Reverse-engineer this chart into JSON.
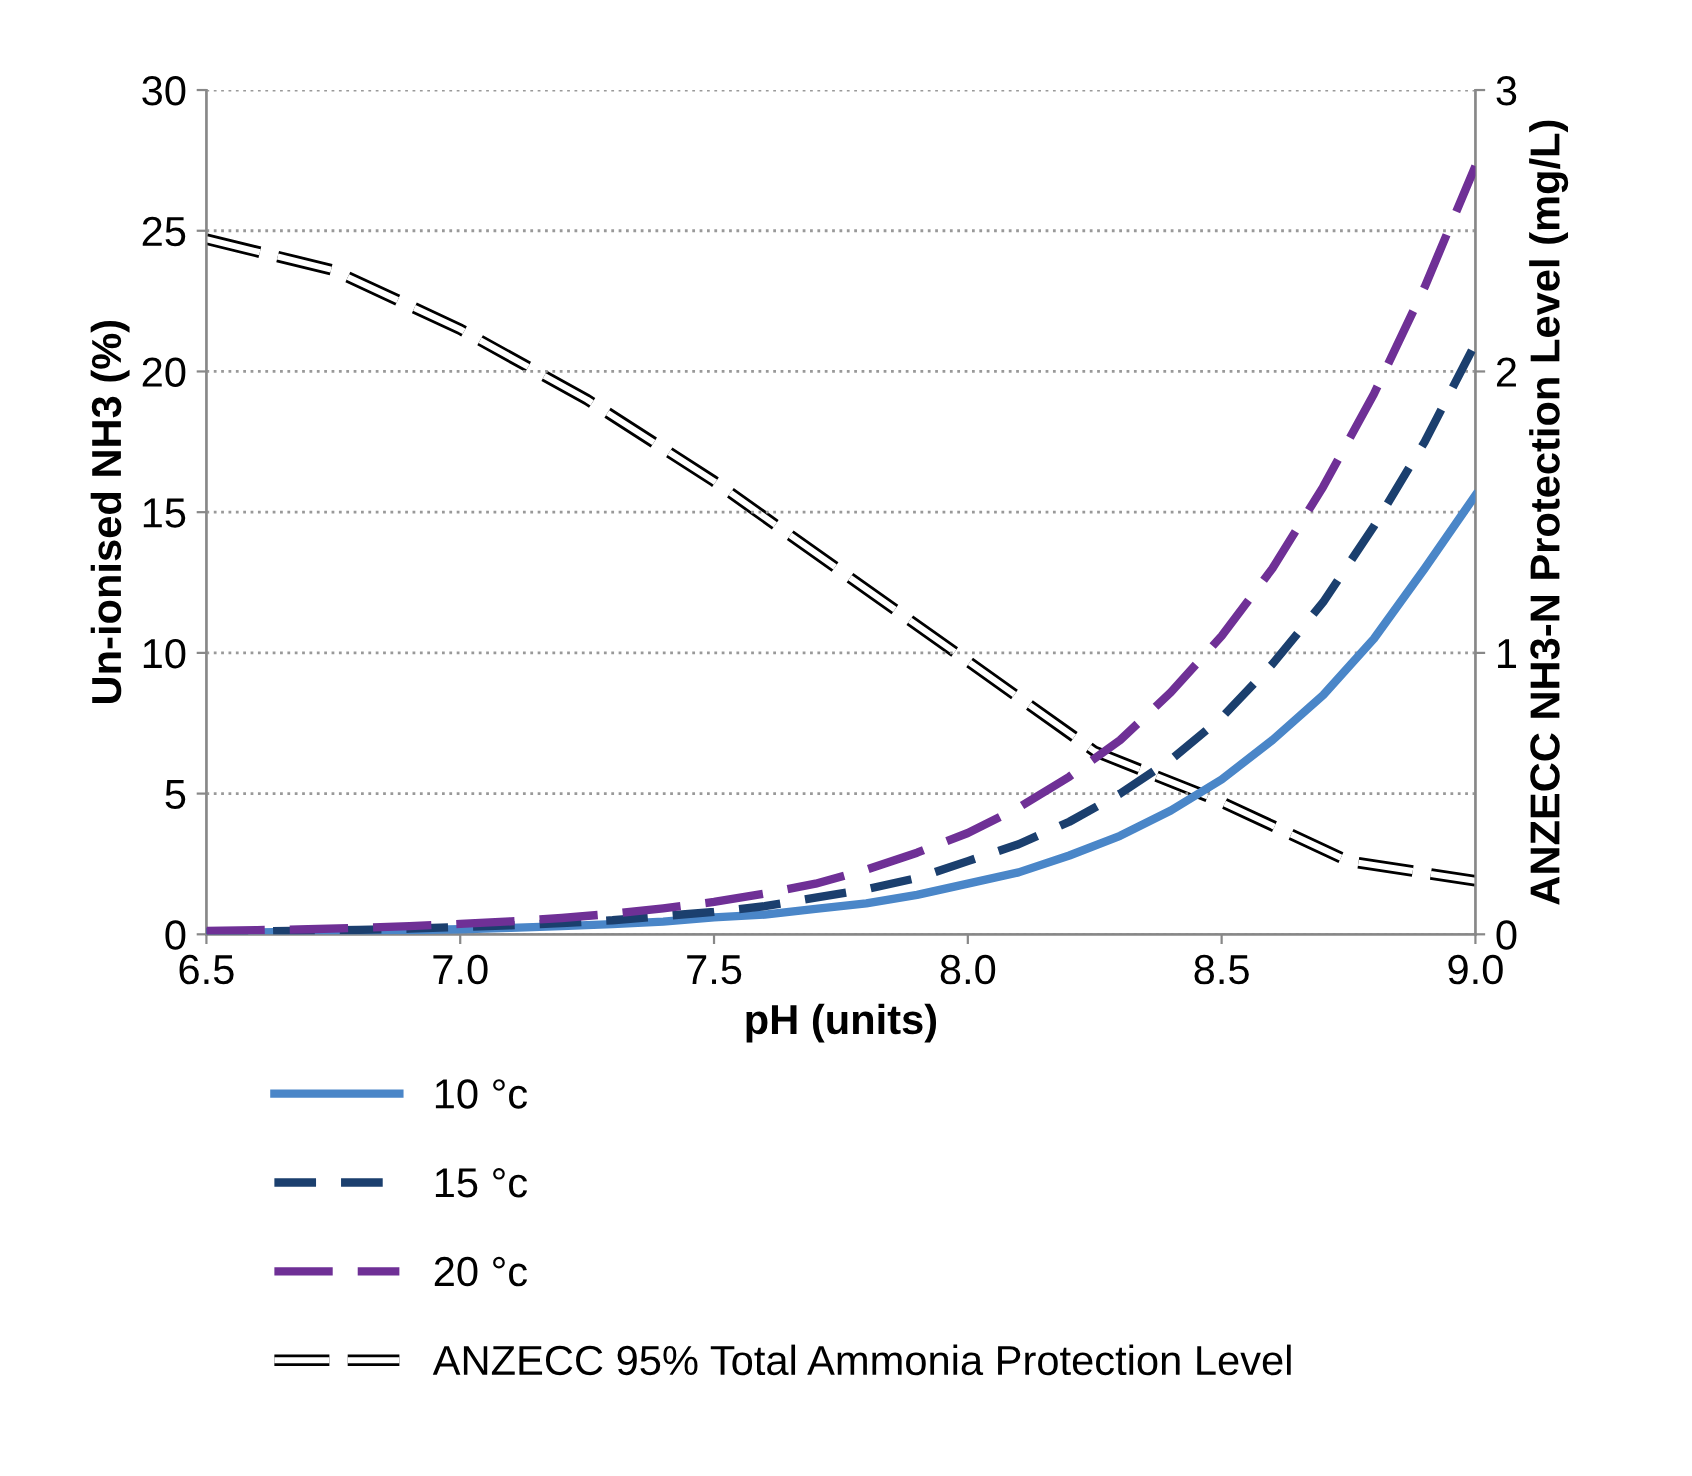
{
  "chart_data": {
    "type": "line",
    "xlabel": "pH (units)",
    "ylabel": "Un-ionised NH3 (%)",
    "y2label": "ANZECC NH3-N Protection Level (mg/L)",
    "xlim": [
      6.5,
      9.0
    ],
    "xticks": [
      {
        "value": 6.5,
        "label": "6.5"
      },
      {
        "value": 7.0,
        "label": "7.0"
      },
      {
        "value": 7.5,
        "label": "7.5"
      },
      {
        "value": 8.0,
        "label": "8.0"
      },
      {
        "value": 8.5,
        "label": "8.5"
      },
      {
        "value": 9.0,
        "label": "9.0"
      }
    ],
    "ylim": [
      0,
      30
    ],
    "yticks": [
      0,
      5,
      10,
      15,
      20,
      25,
      30
    ],
    "y2lim": [
      0,
      3
    ],
    "y2ticks": [
      0,
      1,
      2,
      3
    ],
    "grid": "y",
    "legend": "bottom",
    "marker": "none",
    "x": [
      6.5,
      6.6,
      6.7,
      6.8,
      6.9,
      7.0,
      7.1,
      7.2,
      7.3,
      7.4,
      7.5,
      7.6,
      7.7,
      7.8,
      7.9,
      8.0,
      8.1,
      8.2,
      8.3,
      8.4,
      8.5,
      8.6,
      8.7,
      8.8,
      8.9,
      9.0
    ],
    "series": [
      {
        "name": "10 °c",
        "color": "#4a86c8",
        "line_style": "solid",
        "values": [
          0.06,
          0.07,
          0.09,
          0.12,
          0.15,
          0.18,
          0.23,
          0.29,
          0.36,
          0.45,
          0.6,
          0.7,
          0.9,
          1.1,
          1.4,
          1.8,
          2.2,
          2.8,
          3.5,
          4.4,
          5.5,
          6.9,
          8.5,
          10.5,
          13.0,
          15.6
        ]
      },
      {
        "name": "15 °c",
        "color": "#1b3f6e",
        "line_style": "dashed",
        "values": [
          0.08,
          0.1,
          0.13,
          0.16,
          0.2,
          0.26,
          0.32,
          0.4,
          0.5,
          0.65,
          0.8,
          1.0,
          1.3,
          1.6,
          2.0,
          2.6,
          3.2,
          4.0,
          5.0,
          6.2,
          7.7,
          9.6,
          11.8,
          14.5,
          17.5,
          21.0
        ]
      },
      {
        "name": "20 °c",
        "color": "#6f3096",
        "line_style": "dashed",
        "values": [
          0.12,
          0.15,
          0.18,
          0.23,
          0.29,
          0.37,
          0.46,
          0.58,
          0.73,
          0.92,
          1.15,
          1.45,
          1.8,
          2.3,
          2.9,
          3.6,
          4.5,
          5.6,
          6.9,
          8.6,
          10.6,
          13.0,
          15.9,
          19.2,
          23.0,
          27.3
        ]
      },
      {
        "name": "ANZECC 95% Total Ammonia Protection Level",
        "color": "#000000",
        "line_style": "dashed",
        "axis": "y2",
        "x": [
          6.5,
          6.75,
          7.0,
          7.25,
          7.5,
          7.75,
          8.0,
          8.25,
          8.5,
          8.75,
          9.0
        ],
        "values": [
          2.47,
          2.36,
          2.15,
          1.9,
          1.61,
          1.29,
          0.97,
          0.65,
          0.47,
          0.26,
          0.19
        ]
      }
    ]
  }
}
